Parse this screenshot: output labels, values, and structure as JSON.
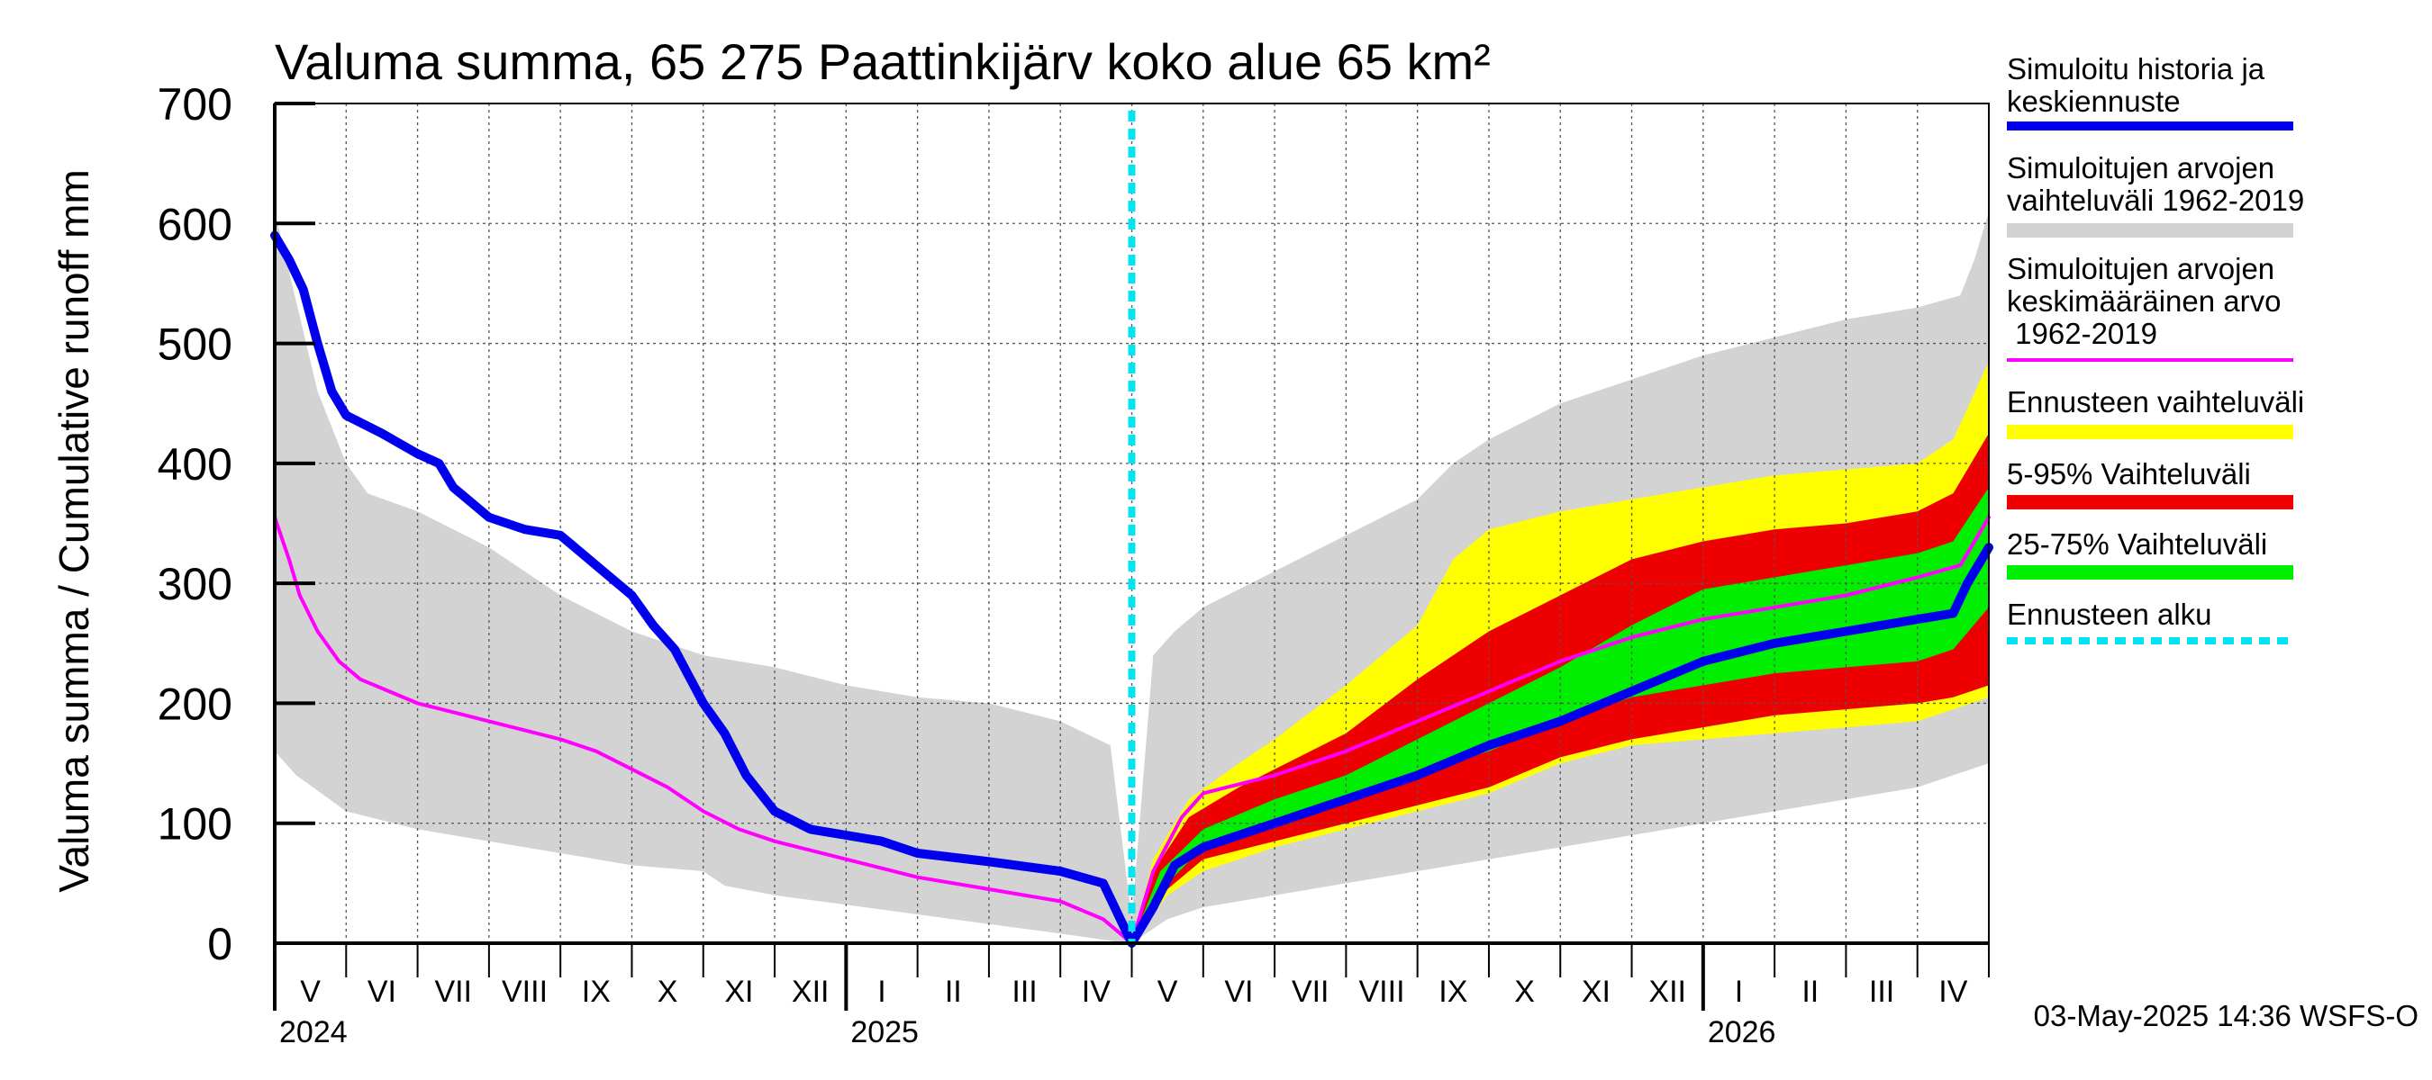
{
  "chart_data": {
    "type": "area",
    "title": "Valuma summa, 65 275 Paattinkijärv koko alue 65 km²",
    "ylabel": "Valuma summa / Cumulative runoff    mm",
    "xlabel": "",
    "ylim": [
      0,
      700
    ],
    "yticks": [
      0,
      100,
      200,
      300,
      400,
      500,
      600,
      700
    ],
    "grid": true,
    "legend_position": "right",
    "forecast_start": "2025-05-01",
    "timestamp": "03-May-2025 14:36 WSFS-O",
    "x_months": [
      "V",
      "VI",
      "VII",
      "VIII",
      "IX",
      "X",
      "XI",
      "XII",
      "I",
      "II",
      "III",
      "IV",
      "V",
      "VI",
      "VII",
      "VIII",
      "IX",
      "X",
      "XI",
      "XII",
      "I",
      "II",
      "III",
      "IV"
    ],
    "x_years": [
      {
        "label": "2024",
        "month_index": 0
      },
      {
        "label": "2025",
        "month_index": 8
      },
      {
        "label": "2026",
        "month_index": 20
      }
    ],
    "legend": [
      {
        "label": "Simuloitu historia ja keskiennuste",
        "color": "#0000ee",
        "style": "line"
      },
      {
        "label": "Simuloitujen arvojen vaihteluväli 1962-2019",
        "color": "#d3d3d3",
        "style": "band"
      },
      {
        "label": "Simuloitujen arvojen keskimääräinen arvo 1962-2019",
        "color": "#ff00ff",
        "style": "line"
      },
      {
        "label": "Ennusteen vaihteluväli",
        "color": "#ffff00",
        "style": "band"
      },
      {
        "label": "5-95% Vaihteluväli",
        "color": "#ee0000",
        "style": "band"
      },
      {
        "label": "25-75% Vaihteluväli",
        "color": "#00ee00",
        "style": "band"
      },
      {
        "label": "Ennusteen alku",
        "color": "#00e5ee",
        "style": "dashed"
      }
    ],
    "series": [
      {
        "name": "Simuloitujen arvojen vaihteluväli 1962-2019 (max)",
        "color": "#d3d3d3",
        "x": [
          0,
          0.2,
          0.6,
          1.0,
          1.3,
          2,
          3,
          4,
          5,
          6,
          7,
          8,
          9,
          10,
          11,
          11.7,
          12,
          12.3,
          12.6,
          13,
          14,
          15,
          16,
          16.5,
          17,
          18,
          18.5,
          19,
          20,
          21,
          22,
          23,
          23.6,
          23.8,
          24
        ],
        "values": [
          610,
          560,
          460,
          400,
          375,
          360,
          330,
          290,
          260,
          240,
          230,
          215,
          205,
          200,
          185,
          165,
          20,
          240,
          260,
          280,
          310,
          340,
          370,
          400,
          420,
          450,
          460,
          470,
          490,
          505,
          520,
          530,
          540,
          570,
          610
        ]
      },
      {
        "name": "Simuloitujen arvojen vaihteluväli 1962-2019 (min)",
        "color": "#d3d3d3",
        "x": [
          0,
          0.3,
          1,
          2,
          3,
          4,
          5,
          6,
          6.3,
          7,
          8,
          9,
          10,
          11,
          11.7,
          12,
          12.5,
          13,
          14,
          15,
          16,
          17,
          18,
          19,
          20,
          21,
          22,
          23,
          24
        ],
        "values": [
          160,
          140,
          110,
          95,
          85,
          75,
          65,
          60,
          48,
          40,
          32,
          24,
          16,
          8,
          2,
          0,
          20,
          30,
          40,
          50,
          60,
          70,
          80,
          90,
          100,
          110,
          120,
          130,
          150
        ]
      },
      {
        "name": "Ennusteen vaihteluväli (max)",
        "color": "#ffff00",
        "x": [
          12,
          12.3,
          12.8,
          13.5,
          14,
          15,
          16,
          16.5,
          17,
          18,
          19,
          20,
          21,
          22,
          23,
          23.5,
          24
        ],
        "values": [
          0,
          70,
          120,
          150,
          170,
          215,
          265,
          320,
          345,
          360,
          370,
          380,
          390,
          395,
          400,
          420,
          485
        ]
      },
      {
        "name": "Ennusteen vaihteluväli (min)",
        "color": "#ffff00",
        "x": [
          12,
          12.5,
          13,
          14,
          15,
          16,
          17,
          18,
          19,
          20,
          21,
          22,
          23,
          23.5,
          24
        ],
        "values": [
          0,
          40,
          60,
          80,
          95,
          110,
          125,
          150,
          165,
          170,
          175,
          180,
          185,
          195,
          205
        ]
      },
      {
        "name": "5-95% Vaihteluväli (max)",
        "color": "#ee0000",
        "x": [
          12,
          12.3,
          12.8,
          13.5,
          14,
          15,
          16,
          17,
          18,
          19,
          20,
          21,
          22,
          23,
          23.5,
          24
        ],
        "values": [
          0,
          60,
          105,
          130,
          145,
          175,
          220,
          260,
          290,
          320,
          335,
          345,
          350,
          360,
          375,
          425
        ]
      },
      {
        "name": "5-95% Vaihteluväli (min)",
        "color": "#ee0000",
        "x": [
          12,
          12.5,
          13,
          14,
          15,
          16,
          17,
          18,
          19,
          20,
          21,
          22,
          23,
          23.5,
          24
        ],
        "values": [
          0,
          45,
          70,
          85,
          100,
          115,
          130,
          155,
          170,
          180,
          190,
          195,
          200,
          205,
          215
        ]
      },
      {
        "name": "25-75% Vaihteluväli (max)",
        "color": "#00ee00",
        "x": [
          12,
          12.4,
          13,
          14,
          15,
          16,
          17,
          18,
          19,
          20,
          21,
          22,
          23,
          23.5,
          24
        ],
        "values": [
          0,
          60,
          95,
          120,
          140,
          170,
          200,
          230,
          265,
          295,
          305,
          315,
          325,
          335,
          380
        ]
      },
      {
        "name": "25-75% Vaihteluväli (min)",
        "color": "#00ee00",
        "x": [
          12,
          12.5,
          13,
          14,
          15,
          16,
          17,
          18,
          19,
          20,
          21,
          22,
          23,
          23.5,
          24
        ],
        "values": [
          0,
          50,
          80,
          100,
          120,
          140,
          160,
          185,
          205,
          215,
          225,
          230,
          235,
          245,
          280
        ]
      },
      {
        "name": "Simuloitujen arvojen keskimääräinen arvo 1962-2019",
        "color": "#ff00ff",
        "x": [
          0,
          0.2,
          0.35,
          0.6,
          0.9,
          1.2,
          1.6,
          2,
          3,
          4,
          4.5,
          5,
          5.5,
          6,
          6.5,
          7,
          8,
          9,
          10,
          11,
          11.6,
          12,
          12.3,
          12.7,
          13,
          14,
          15,
          16,
          17,
          18,
          19,
          20,
          21,
          22,
          23,
          23.6,
          24
        ],
        "values": [
          355,
          320,
          290,
          260,
          235,
          220,
          210,
          200,
          185,
          170,
          160,
          145,
          130,
          110,
          95,
          85,
          70,
          55,
          45,
          35,
          20,
          0,
          60,
          105,
          125,
          140,
          160,
          185,
          210,
          235,
          255,
          270,
          280,
          290,
          305,
          315,
          355
        ]
      },
      {
        "name": "Simuloitu historia ja keskiennuste",
        "color": "#0000ee",
        "x": [
          0,
          0.2,
          0.4,
          0.6,
          0.8,
          1,
          1.5,
          2,
          2.3,
          2.5,
          3,
          3.5,
          4,
          4.3,
          4.6,
          5,
          5.3,
          5.6,
          6,
          6.3,
          6.6,
          7,
          7.5,
          8,
          8.5,
          9,
          10,
          11,
          11.6,
          12,
          12.3,
          12.6,
          13,
          13.5,
          14,
          15,
          16,
          17,
          18,
          19,
          20,
          21,
          22,
          23,
          23.5,
          23.7,
          24
        ],
        "values": [
          590,
          570,
          545,
          500,
          460,
          440,
          425,
          408,
          400,
          380,
          355,
          345,
          340,
          325,
          310,
          290,
          265,
          245,
          200,
          175,
          140,
          110,
          95,
          90,
          85,
          75,
          68,
          60,
          50,
          0,
          30,
          65,
          80,
          90,
          100,
          120,
          140,
          165,
          185,
          210,
          235,
          250,
          260,
          270,
          275,
          300,
          330
        ]
      }
    ]
  }
}
